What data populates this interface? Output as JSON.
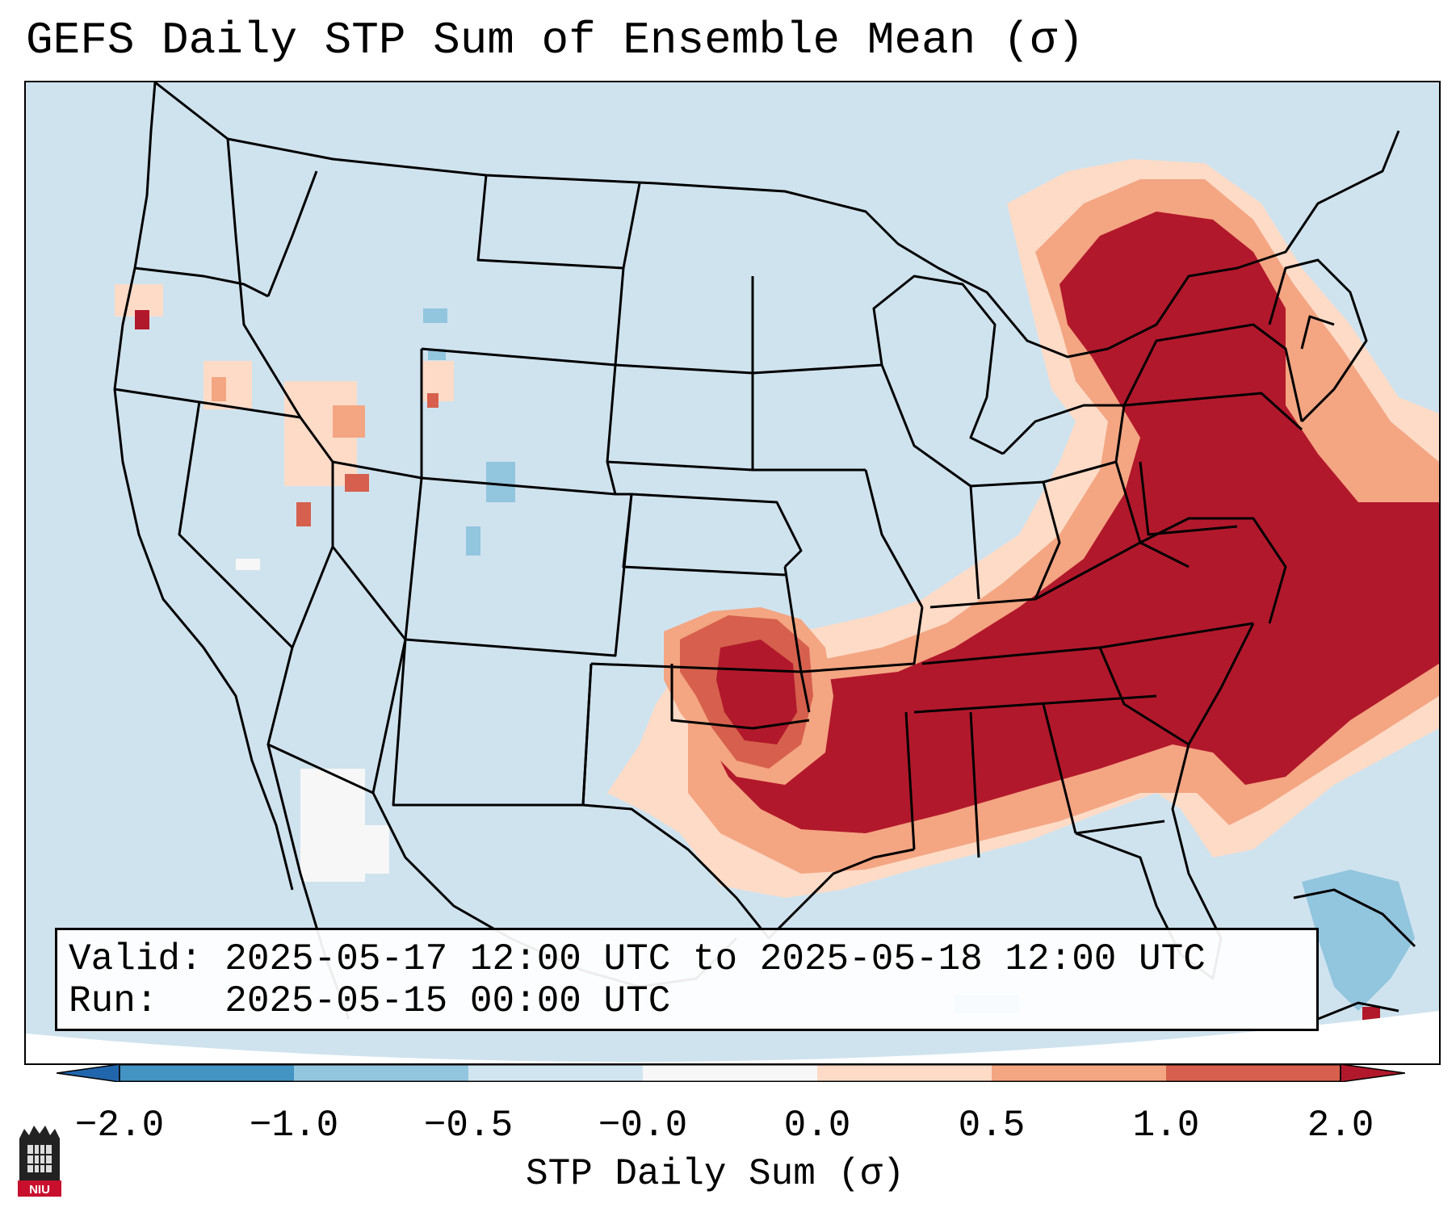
{
  "title": "GEFS Daily STP Sum of Ensemble Mean (σ)",
  "info": {
    "valid_line": "Valid: 2025-05-17 12:00 UTC to 2025-05-18 12:00 UTC",
    "run_line": "Run:   2025-05-15 00:00 UTC"
  },
  "colorbar": {
    "label": "STP Daily Sum (σ)",
    "ticks": [
      "−2.0",
      "−1.0",
      "−0.5",
      "−0.0",
      "0.0",
      "0.5",
      "1.0",
      "2.0"
    ],
    "bins": [
      {
        "range": "< -2.0",
        "color": "#2166ac"
      },
      {
        "range": "-2.0 to -1.0",
        "color": "#4393c3"
      },
      {
        "range": "-1.0 to -0.5",
        "color": "#92c5de"
      },
      {
        "range": "-0.5 to -0.0",
        "color": "#d1e5f0"
      },
      {
        "range": "-0.0 to 0.0",
        "color": "#f7f7f7"
      },
      {
        "range": "0.0 to 0.5",
        "color": "#fddbc7"
      },
      {
        "range": "0.5 to 1.0",
        "color": "#f4a582"
      },
      {
        "range": "1.0 to 2.0",
        "color": "#d6604d"
      },
      {
        "range": "> 2.0",
        "color": "#b2182b"
      }
    ]
  },
  "map": {
    "region": "Contiguous United States",
    "background_color": "#cfe3ef",
    "features": [
      "state-borders",
      "coastlines",
      "great-lakes"
    ],
    "high_values_area": "Southeast, Mid-Atlantic, Northeast US and western Atlantic (> 2.0)",
    "moderate_values_area": "Southern Plains (Oklahoma, north Texas, Arkansas)"
  },
  "logo": {
    "text": "NIU"
  }
}
